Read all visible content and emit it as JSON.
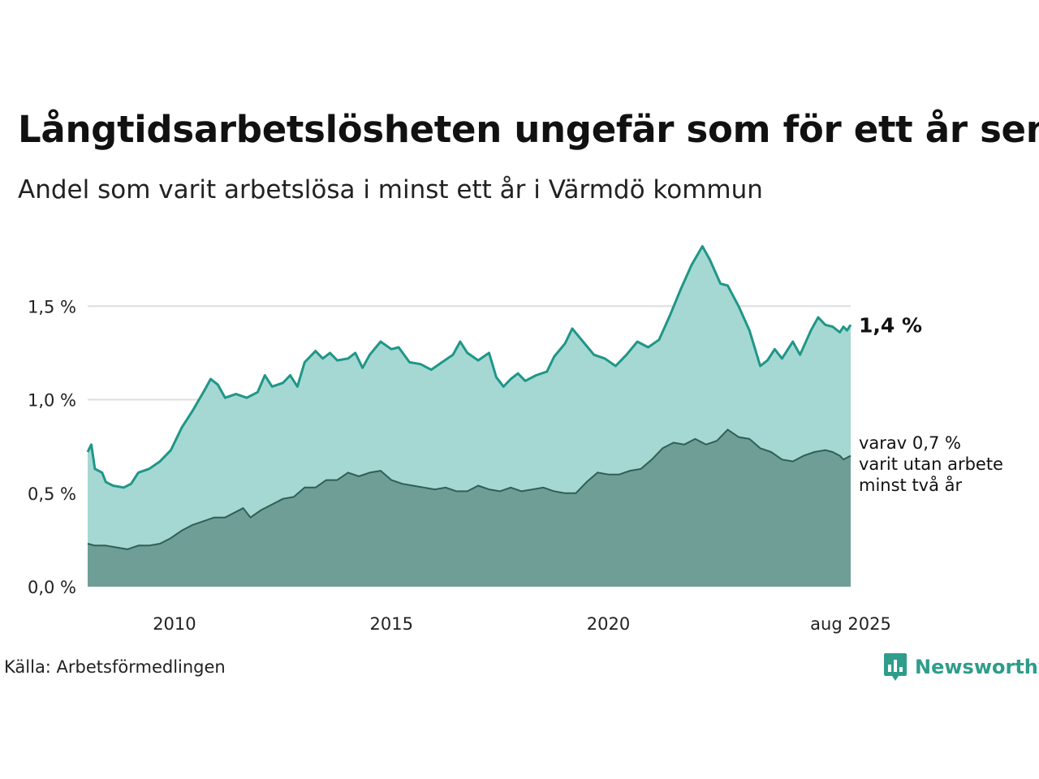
{
  "title": "Långtidsarbetslösheten ungefär som för ett år sen",
  "subtitle": "Andel som varit arbetslösa i minst ett år i Värmdö kommun",
  "source": "Källa: Arbetsförmedlingen",
  "brand": {
    "name": "Newsworthy",
    "icon": "newsworthy-logo-icon",
    "color": "#2e9d8b"
  },
  "chart_data": {
    "type": "area",
    "x_unit": "month",
    "x_start": "2008-01",
    "x_end": "2025-08",
    "x_ticks": [
      "2010",
      "2015",
      "2020",
      "aug 2025"
    ],
    "y_ticks": [
      "0,0 %",
      "0,5 %",
      "1,0 %",
      "1,5 %"
    ],
    "ylim": [
      0,
      1.9
    ],
    "grid": true,
    "series": [
      {
        "name": "minst ett år",
        "color_line": "#1f9688",
        "color_fill": "#a5d8d2",
        "points": [
          [
            "2008-01",
            0.72
          ],
          [
            "2008-02",
            0.76
          ],
          [
            "2008-03",
            0.63
          ],
          [
            "2008-05",
            0.61
          ],
          [
            "2008-06",
            0.56
          ],
          [
            "2008-08",
            0.54
          ],
          [
            "2008-11",
            0.53
          ],
          [
            "2009-01",
            0.55
          ],
          [
            "2009-03",
            0.61
          ],
          [
            "2009-06",
            0.63
          ],
          [
            "2009-09",
            0.67
          ],
          [
            "2009-12",
            0.73
          ],
          [
            "2010-03",
            0.85
          ],
          [
            "2010-06",
            0.94
          ],
          [
            "2010-09",
            1.04
          ],
          [
            "2010-11",
            1.11
          ],
          [
            "2011-01",
            1.08
          ],
          [
            "2011-03",
            1.01
          ],
          [
            "2011-06",
            1.03
          ],
          [
            "2011-09",
            1.01
          ],
          [
            "2011-12",
            1.04
          ],
          [
            "2012-02",
            1.13
          ],
          [
            "2012-04",
            1.07
          ],
          [
            "2012-07",
            1.09
          ],
          [
            "2012-09",
            1.13
          ],
          [
            "2012-11",
            1.07
          ],
          [
            "2013-01",
            1.2
          ],
          [
            "2013-04",
            1.26
          ],
          [
            "2013-06",
            1.22
          ],
          [
            "2013-08",
            1.25
          ],
          [
            "2013-10",
            1.21
          ],
          [
            "2014-01",
            1.22
          ],
          [
            "2014-03",
            1.25
          ],
          [
            "2014-05",
            1.17
          ],
          [
            "2014-07",
            1.24
          ],
          [
            "2014-10",
            1.31
          ],
          [
            "2015-01",
            1.27
          ],
          [
            "2015-03",
            1.28
          ],
          [
            "2015-06",
            1.2
          ],
          [
            "2015-09",
            1.19
          ],
          [
            "2015-12",
            1.16
          ],
          [
            "2016-03",
            1.2
          ],
          [
            "2016-06",
            1.24
          ],
          [
            "2016-08",
            1.31
          ],
          [
            "2016-10",
            1.25
          ],
          [
            "2017-01",
            1.21
          ],
          [
            "2017-04",
            1.25
          ],
          [
            "2017-06",
            1.12
          ],
          [
            "2017-08",
            1.07
          ],
          [
            "2017-10",
            1.11
          ],
          [
            "2017-12",
            1.14
          ],
          [
            "2018-02",
            1.1
          ],
          [
            "2018-05",
            1.13
          ],
          [
            "2018-08",
            1.15
          ],
          [
            "2018-10",
            1.23
          ],
          [
            "2019-01",
            1.3
          ],
          [
            "2019-03",
            1.38
          ],
          [
            "2019-06",
            1.31
          ],
          [
            "2019-09",
            1.24
          ],
          [
            "2019-12",
            1.22
          ],
          [
            "2020-03",
            1.18
          ],
          [
            "2020-06",
            1.24
          ],
          [
            "2020-09",
            1.31
          ],
          [
            "2020-12",
            1.28
          ],
          [
            "2021-03",
            1.32
          ],
          [
            "2021-06",
            1.45
          ],
          [
            "2021-09",
            1.59
          ],
          [
            "2021-12",
            1.72
          ],
          [
            "2022-03",
            1.82
          ],
          [
            "2022-05",
            1.75
          ],
          [
            "2022-08",
            1.62
          ],
          [
            "2022-10",
            1.61
          ],
          [
            "2023-01",
            1.5
          ],
          [
            "2023-04",
            1.37
          ],
          [
            "2023-07",
            1.18
          ],
          [
            "2023-09",
            1.21
          ],
          [
            "2023-11",
            1.27
          ],
          [
            "2024-01",
            1.22
          ],
          [
            "2024-04",
            1.31
          ],
          [
            "2024-06",
            1.24
          ],
          [
            "2024-09",
            1.37
          ],
          [
            "2024-11",
            1.44
          ],
          [
            "2025-01",
            1.4
          ],
          [
            "2025-03",
            1.39
          ],
          [
            "2025-05",
            1.36
          ],
          [
            "2025-06",
            1.39
          ],
          [
            "2025-07",
            1.37
          ],
          [
            "2025-08",
            1.4
          ]
        ],
        "end_label": "1,4 %"
      },
      {
        "name": "minst två år",
        "color_line": "#2f5f55",
        "color_fill": "#6f9e96",
        "points": [
          [
            "2008-01",
            0.23
          ],
          [
            "2008-03",
            0.22
          ],
          [
            "2008-06",
            0.22
          ],
          [
            "2008-09",
            0.21
          ],
          [
            "2008-12",
            0.2
          ],
          [
            "2009-03",
            0.22
          ],
          [
            "2009-06",
            0.22
          ],
          [
            "2009-09",
            0.23
          ],
          [
            "2009-12",
            0.26
          ],
          [
            "2010-03",
            0.3
          ],
          [
            "2010-06",
            0.33
          ],
          [
            "2010-09",
            0.35
          ],
          [
            "2010-12",
            0.37
          ],
          [
            "2011-03",
            0.37
          ],
          [
            "2011-06",
            0.4
          ],
          [
            "2011-08",
            0.42
          ],
          [
            "2011-10",
            0.37
          ],
          [
            "2012-01",
            0.41
          ],
          [
            "2012-04",
            0.44
          ],
          [
            "2012-07",
            0.47
          ],
          [
            "2012-10",
            0.48
          ],
          [
            "2013-01",
            0.53
          ],
          [
            "2013-04",
            0.53
          ],
          [
            "2013-07",
            0.57
          ],
          [
            "2013-10",
            0.57
          ],
          [
            "2014-01",
            0.61
          ],
          [
            "2014-04",
            0.59
          ],
          [
            "2014-07",
            0.61
          ],
          [
            "2014-10",
            0.62
          ],
          [
            "2015-01",
            0.57
          ],
          [
            "2015-04",
            0.55
          ],
          [
            "2015-07",
            0.54
          ],
          [
            "2015-10",
            0.53
          ],
          [
            "2016-01",
            0.52
          ],
          [
            "2016-04",
            0.53
          ],
          [
            "2016-07",
            0.51
          ],
          [
            "2016-10",
            0.51
          ],
          [
            "2017-01",
            0.54
          ],
          [
            "2017-04",
            0.52
          ],
          [
            "2017-07",
            0.51
          ],
          [
            "2017-10",
            0.53
          ],
          [
            "2018-01",
            0.51
          ],
          [
            "2018-04",
            0.52
          ],
          [
            "2018-07",
            0.53
          ],
          [
            "2018-10",
            0.51
          ],
          [
            "2019-01",
            0.5
          ],
          [
            "2019-04",
            0.5
          ],
          [
            "2019-07",
            0.56
          ],
          [
            "2019-10",
            0.61
          ],
          [
            "2020-01",
            0.6
          ],
          [
            "2020-04",
            0.6
          ],
          [
            "2020-07",
            0.62
          ],
          [
            "2020-10",
            0.63
          ],
          [
            "2021-01",
            0.68
          ],
          [
            "2021-04",
            0.74
          ],
          [
            "2021-07",
            0.77
          ],
          [
            "2021-10",
            0.76
          ],
          [
            "2022-01",
            0.79
          ],
          [
            "2022-04",
            0.76
          ],
          [
            "2022-07",
            0.78
          ],
          [
            "2022-10",
            0.84
          ],
          [
            "2023-01",
            0.8
          ],
          [
            "2023-04",
            0.79
          ],
          [
            "2023-07",
            0.74
          ],
          [
            "2023-10",
            0.72
          ],
          [
            "2024-01",
            0.68
          ],
          [
            "2024-04",
            0.67
          ],
          [
            "2024-07",
            0.7
          ],
          [
            "2024-10",
            0.72
          ],
          [
            "2025-01",
            0.73
          ],
          [
            "2025-03",
            0.72
          ],
          [
            "2025-05",
            0.7
          ],
          [
            "2025-06",
            0.68
          ],
          [
            "2025-08",
            0.7
          ]
        ],
        "end_label": [
          "varav 0,7 %",
          "varit utan arbete",
          "minst två år"
        ]
      }
    ]
  }
}
